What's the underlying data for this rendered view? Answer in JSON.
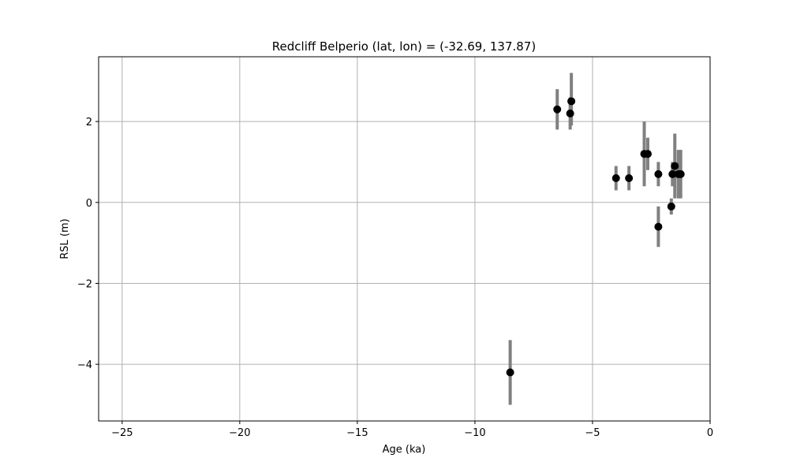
{
  "chart_data": {
    "type": "scatter",
    "title": "Redcliff Belperio (lat, lon) = (-32.69, 137.87)",
    "xlabel": "Age (ka)",
    "ylabel": "RSL (m)",
    "xlim": [
      -26,
      0
    ],
    "ylim": [
      -5.4,
      3.6
    ],
    "xticks": [
      -25,
      -20,
      -15,
      -10,
      -5,
      0
    ],
    "yticks": [
      -4,
      -2,
      0,
      2
    ],
    "xtick_labels": [
      "−25",
      "−20",
      "−15",
      "−10",
      "−5",
      "0"
    ],
    "ytick_labels": [
      "−4",
      "−2",
      "0",
      "2"
    ],
    "grid": true,
    "colors": {
      "marker": "#000000",
      "errorbar": "#808080",
      "grid": "#b0b0b0"
    },
    "points": [
      {
        "x": -8.5,
        "y": -4.2,
        "ylo": -5.0,
        "yhi": -3.4
      },
      {
        "x": -6.5,
        "y": 2.3,
        "ylo": 1.8,
        "yhi": 2.8
      },
      {
        "x": -5.95,
        "y": 2.2,
        "ylo": 1.8,
        "yhi": 2.6
      },
      {
        "x": -5.9,
        "y": 2.5,
        "ylo": 1.9,
        "yhi": 3.2
      },
      {
        "x": -4.0,
        "y": 0.6,
        "ylo": 0.3,
        "yhi": 0.9
      },
      {
        "x": -3.45,
        "y": 0.6,
        "ylo": 0.3,
        "yhi": 0.9
      },
      {
        "x": -2.8,
        "y": 1.2,
        "ylo": 0.4,
        "yhi": 2.0
      },
      {
        "x": -2.65,
        "y": 1.2,
        "ylo": 0.8,
        "yhi": 1.6
      },
      {
        "x": -2.2,
        "y": 0.7,
        "ylo": 0.4,
        "yhi": 1.0
      },
      {
        "x": -2.2,
        "y": -0.6,
        "ylo": -1.1,
        "yhi": -0.1
      },
      {
        "x": -1.65,
        "y": -0.1,
        "ylo": -0.3,
        "yhi": 0.1
      },
      {
        "x": -1.6,
        "y": 0.7,
        "ylo": 0.4,
        "yhi": 1.0
      },
      {
        "x": -1.5,
        "y": 0.9,
        "ylo": 0.1,
        "yhi": 1.7
      },
      {
        "x": -1.35,
        "y": 0.7,
        "ylo": 0.1,
        "yhi": 1.3
      },
      {
        "x": -1.25,
        "y": 0.7,
        "ylo": 0.1,
        "yhi": 1.3
      }
    ]
  }
}
